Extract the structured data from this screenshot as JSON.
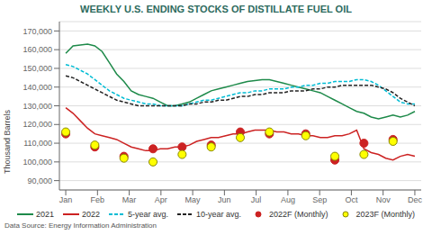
{
  "chart_data": {
    "type": "line",
    "title": "WEEKLY U.S. ENDING STOCKS OF DISTILLATE FUEL OIL",
    "title_color": "#2d6b5e",
    "y_label": "Thousand Barrels",
    "annotations": [
      "Data Source: Energy Information Administration"
    ],
    "grid": true,
    "legend": "bottom",
    "x": [
      0,
      0.2292,
      0.4583,
      0.6875,
      0.9167,
      1.1458,
      1.375,
      1.6042,
      1.8333,
      2.0625,
      2.2917,
      2.5208,
      2.75,
      2.9792,
      3.2083,
      3.4375,
      3.6667,
      3.8958,
      4.125,
      4.3542,
      4.5833,
      4.8125,
      5.0417,
      5.2708,
      5.5,
      5.7292,
      5.9583,
      6.1875,
      6.4167,
      6.6458,
      6.875,
      7.1042,
      7.3333,
      7.5625,
      7.7917,
      8.0208,
      8.25,
      8.4792,
      8.7083,
      8.9375,
      9.1667,
      9.3958,
      9.625,
      9.8542,
      10.0833,
      10.3125,
      10.5417,
      10.7708,
      11
    ],
    "xlim": [
      -0.2,
      11.2
    ],
    "xticks": [
      {
        "value": 0,
        "label": "Jan"
      },
      {
        "value": 1,
        "label": "Feb"
      },
      {
        "value": 2,
        "label": "Mar"
      },
      {
        "value": 3,
        "label": "Apr"
      },
      {
        "value": 4,
        "label": "May"
      },
      {
        "value": 5,
        "label": "Jun"
      },
      {
        "value": 6,
        "label": "Jul"
      },
      {
        "value": 7,
        "label": "Aug"
      },
      {
        "value": 8,
        "label": "Sep"
      },
      {
        "value": 9,
        "label": "Oct"
      },
      {
        "value": 10,
        "label": "Nov"
      },
      {
        "value": 11,
        "label": "Dec"
      }
    ],
    "ylim": [
      85000,
      175000
    ],
    "yticks": [
      {
        "value": 90000,
        "label": "90,000"
      },
      {
        "value": 100000,
        "label": "100,000"
      },
      {
        "value": 110000,
        "label": "110,000"
      },
      {
        "value": 120000,
        "label": "120,000"
      },
      {
        "value": 130000,
        "label": "130,000"
      },
      {
        "value": 140000,
        "label": "140,000"
      },
      {
        "value": 150000,
        "label": "150,000"
      },
      {
        "value": 160000,
        "label": "160,000"
      },
      {
        "value": 170000,
        "label": "170,000"
      }
    ],
    "series": [
      {
        "name": "2021",
        "type": "line",
        "line_style": "solid",
        "color": "#1e8a4a",
        "values": [
          158000,
          162000,
          162500,
          163000,
          162000,
          159000,
          153000,
          147000,
          143000,
          138000,
          136000,
          135000,
          134000,
          132000,
          130000,
          130000,
          131000,
          132000,
          134000,
          136000,
          138000,
          139000,
          140000,
          141000,
          142000,
          143000,
          143500,
          144000,
          144000,
          143000,
          142000,
          141000,
          140000,
          139000,
          138000,
          137000,
          135000,
          133000,
          131000,
          129000,
          127000,
          126000,
          124000,
          123000,
          124000,
          125000,
          124000,
          125000,
          127000
        ]
      },
      {
        "name": "2022",
        "type": "line",
        "line_style": "solid",
        "color": "#cc2222",
        "values": [
          129000,
          126000,
          122000,
          118000,
          115000,
          114000,
          113000,
          112000,
          110000,
          108000,
          107000,
          106000,
          106000,
          107000,
          107000,
          108000,
          108000,
          109000,
          111000,
          112000,
          113000,
          113000,
          114000,
          115000,
          115000,
          116000,
          117000,
          117000,
          117000,
          116000,
          116000,
          115000,
          115000,
          114000,
          114000,
          113000,
          113000,
          114000,
          114000,
          115000,
          117000,
          107000,
          105000,
          104000,
          102000,
          101000,
          103000,
          104000,
          103000
        ]
      },
      {
        "name": "5-year avg.",
        "type": "line",
        "line_style": "dashed",
        "color": "#00bcd4",
        "values": [
          152000,
          151000,
          149000,
          147000,
          144000,
          141000,
          138000,
          136000,
          134000,
          133000,
          132000,
          131000,
          131000,
          130000,
          130000,
          130000,
          130000,
          131000,
          132000,
          133000,
          133000,
          134000,
          135000,
          136000,
          137000,
          137000,
          138000,
          138000,
          139000,
          139000,
          139000,
          140000,
          140000,
          141000,
          141000,
          142000,
          142000,
          143000,
          143000,
          143000,
          144000,
          144000,
          143000,
          141000,
          138000,
          135000,
          132000,
          131000,
          131000
        ]
      },
      {
        "name": "10-year avg.",
        "type": "line",
        "line_style": "dashed",
        "color": "#222222",
        "values": [
          146000,
          145000,
          143000,
          141000,
          139000,
          137000,
          135000,
          133000,
          132000,
          131000,
          130000,
          130000,
          130000,
          130000,
          130000,
          130000,
          130000,
          131000,
          131000,
          132000,
          132000,
          133000,
          133000,
          134000,
          135000,
          135000,
          136000,
          136000,
          137000,
          137000,
          137000,
          138000,
          138000,
          138000,
          139000,
          139000,
          140000,
          140000,
          141000,
          141000,
          141000,
          141000,
          141000,
          140000,
          139000,
          137000,
          134000,
          132000,
          130000
        ]
      },
      {
        "name": "2022F (Monthly)",
        "type": "scatter",
        "marker": "circle",
        "color": "#cc2222",
        "values": [
          115000,
          null,
          null,
          null,
          108000,
          null,
          null,
          null,
          103000,
          null,
          null,
          null,
          107000,
          null,
          null,
          null,
          108000,
          null,
          null,
          null,
          109000,
          null,
          null,
          null,
          116000,
          null,
          null,
          null,
          115000,
          null,
          null,
          null,
          null,
          115000,
          null,
          null,
          null,
          101000,
          null,
          null,
          null,
          110000,
          null,
          null,
          null,
          112000,
          null,
          null,
          null
        ]
      },
      {
        "name": "2023F (Monthly)",
        "type": "scatter",
        "marker": "circle_outlined",
        "color": "#ffff00",
        "values": [
          116000,
          null,
          null,
          null,
          109000,
          null,
          null,
          null,
          102000,
          null,
          null,
          null,
          100000,
          null,
          null,
          null,
          104000,
          null,
          null,
          null,
          108000,
          null,
          null,
          null,
          113000,
          null,
          null,
          null,
          116000,
          null,
          null,
          null,
          null,
          114000,
          null,
          null,
          null,
          103000,
          null,
          null,
          null,
          104000,
          null,
          null,
          null,
          111000,
          null,
          null,
          null
        ]
      }
    ]
  }
}
